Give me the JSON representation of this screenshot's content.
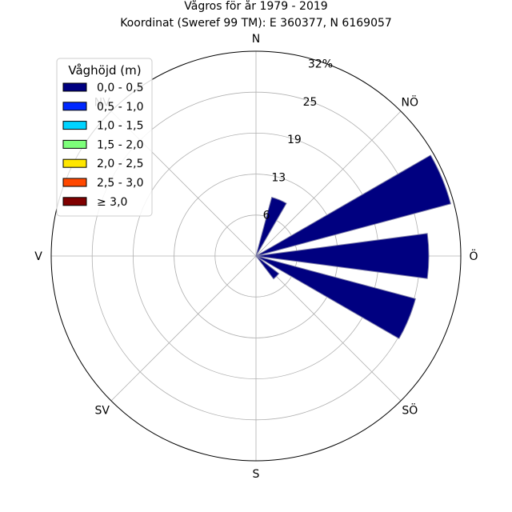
{
  "chart_data": {
    "type": "wind-rose",
    "title_line1": "Vågros för år 1979 - 2019",
    "title_line2": "Koordinat (Sweref 99 TM): E 360377, N 6169057",
    "directions": [
      "N",
      "NÖ",
      "Ö",
      "SÖ",
      "S",
      "SV",
      "V",
      "NV"
    ],
    "radial_ticks": [
      "6",
      "13",
      "19",
      "25",
      "32%"
    ],
    "rmax": 32,
    "grid": true,
    "legend_position": "top-left",
    "legend_title": "Våghöjd (m)",
    "legend": [
      {
        "label": "0,0 - 0,5",
        "color": "#000080"
      },
      {
        "label": "0,5 - 1,0",
        "color": "#0028ff"
      },
      {
        "label": "1,0 - 1,5",
        "color": "#00d4ff"
      },
      {
        "label": "1,5 - 2,0",
        "color": "#7dff7a"
      },
      {
        "label": "2,0 - 2,5",
        "color": "#ffe600"
      },
      {
        "label": "2,5 - 3,0",
        "color": "#ff4800"
      },
      {
        "label": "≥ 3,0",
        "color": "#800000"
      }
    ],
    "sectors_unit": "degrees from north, clockwise",
    "sectors": [
      {
        "direction": 22.5,
        "value": 9.5
      },
      {
        "direction": 67.5,
        "value": 31.5
      },
      {
        "direction": 90.0,
        "value": 27.0
      },
      {
        "direction": 112.5,
        "value": 25.8
      },
      {
        "direction": 135.0,
        "value": 4.5
      },
      {
        "direction": 157.5,
        "value": 0.0
      }
    ]
  }
}
